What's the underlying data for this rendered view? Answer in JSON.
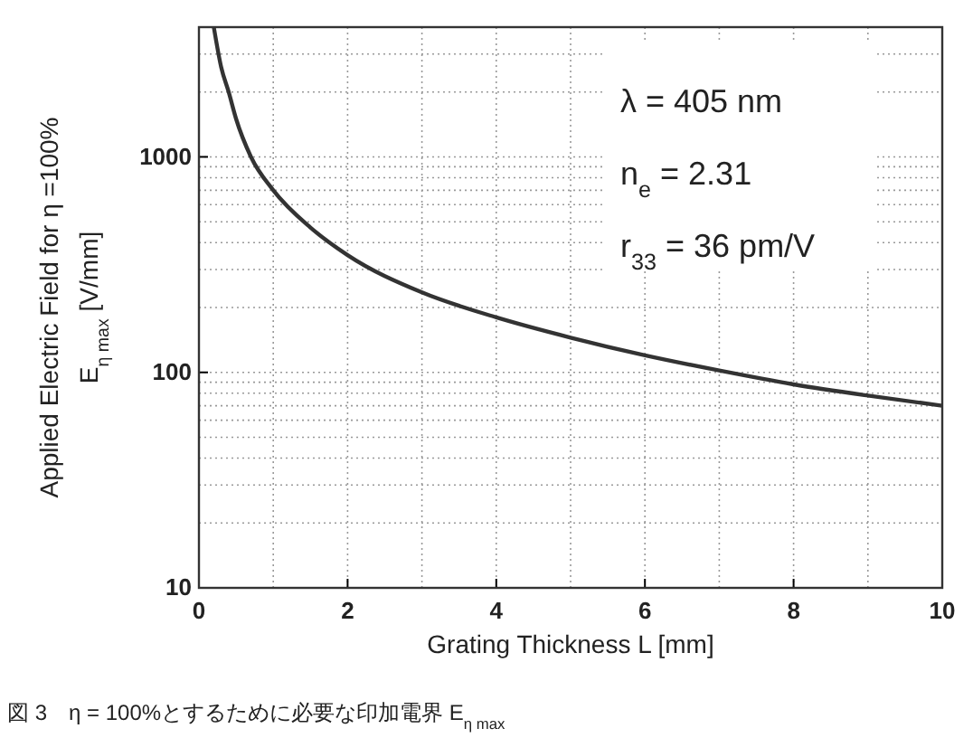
{
  "chart_data": {
    "type": "line",
    "x": [
      0.2,
      0.3,
      0.4,
      0.5,
      0.7,
      1,
      1.5,
      2,
      3,
      4,
      5,
      6,
      7,
      8,
      9,
      10
    ],
    "series": [
      {
        "color": "#333333",
        "values": [
          4000,
          2600,
          2000,
          1500,
          1000,
          700,
          470,
          350,
          235,
          180,
          145,
          120,
          102,
          88,
          78,
          70
        ]
      }
    ],
    "xlim": [
      0,
      10
    ],
    "xticks": [
      0,
      2,
      4,
      6,
      8,
      10
    ],
    "ylim": [
      10,
      4000
    ],
    "yticks": [
      10,
      100,
      1000
    ],
    "log": true,
    "grid": true,
    "xlabel": "Grating Thickness L [mm]",
    "ylabel": "Applied Electric Field for η =100%\nE$_{η max}$ [V/mm]",
    "annotations": [
      "λ = 405 nm",
      "n$_{e}$ = 2.31",
      "r$_{33}$ = 36 pm/V",
      "図 3　η = 100%とするために必要な印加電界 E$_{η max}$"
    ],
    "marker": "none",
    "line_style": "solid"
  }
}
